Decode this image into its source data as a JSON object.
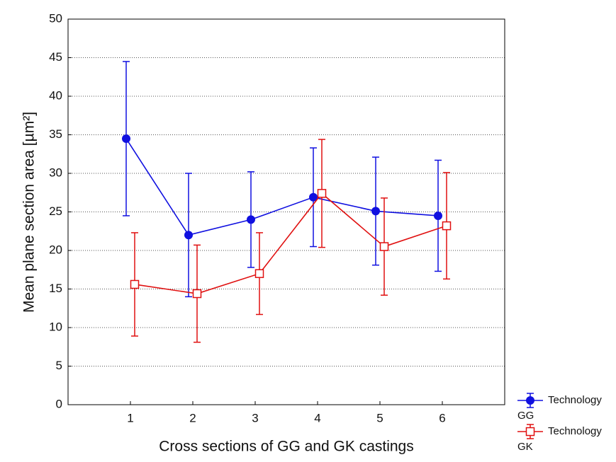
{
  "chart_data": {
    "type": "line",
    "xlabel": "Cross sections of GG and GK castings",
    "ylabel": "Mean plane section area [µm²]",
    "x": [
      1,
      2,
      3,
      4,
      5,
      6
    ],
    "xlim": [
      0,
      7
    ],
    "xticks": [
      1,
      2,
      3,
      4,
      5,
      6
    ],
    "ylim": [
      0,
      50
    ],
    "yticks": [
      0,
      5,
      10,
      15,
      20,
      25,
      30,
      35,
      40,
      45,
      50
    ],
    "grid": true,
    "legend": "right",
    "series": [
      {
        "name": "Technology GG",
        "color": "#1010e0",
        "marker": "circle",
        "values": [
          34.5,
          22.0,
          24.0,
          26.9,
          25.1,
          24.5
        ],
        "errors": [
          10.0,
          8.0,
          6.2,
          6.4,
          7.0,
          7.2
        ]
      },
      {
        "name": "Technology GK",
        "color": "#e01010",
        "marker": "square",
        "values": [
          15.6,
          14.4,
          17.0,
          27.4,
          20.5,
          23.2
        ],
        "errors": [
          6.7,
          6.3,
          5.3,
          7.0,
          6.3,
          6.9
        ]
      }
    ]
  }
}
